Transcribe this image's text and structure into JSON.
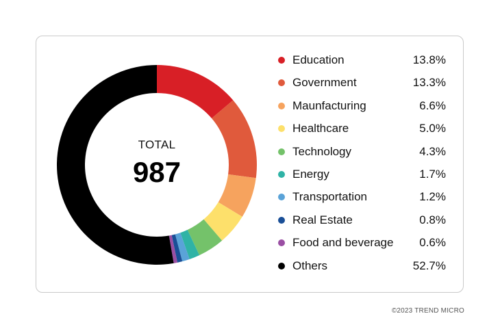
{
  "chart_data": {
    "type": "pie",
    "donut": true,
    "center": {
      "label": "TOTAL",
      "value": "987"
    },
    "legend_placement": "right",
    "slices": [
      {
        "name": "Education",
        "value": 13.8,
        "label": "13.8%",
        "color": "#d81f26"
      },
      {
        "name": "Government",
        "value": 13.3,
        "label": "13.3%",
        "color": "#e05a3c"
      },
      {
        "name": "Maunfacturing",
        "value": 6.6,
        "label": "6.6%",
        "color": "#f6a35e"
      },
      {
        "name": "Healthcare",
        "value": 5.0,
        "label": "5.0%",
        "color": "#fde06b"
      },
      {
        "name": "Technology",
        "value": 4.3,
        "label": "4.3%",
        "color": "#74c26a"
      },
      {
        "name": "Energy",
        "value": 1.7,
        "label": "1.7%",
        "color": "#2fb3a6"
      },
      {
        "name": "Transportation",
        "value": 1.2,
        "label": "1.2%",
        "color": "#5aa3d8"
      },
      {
        "name": "Real Estate",
        "value": 0.8,
        "label": "0.8%",
        "color": "#1a4f97"
      },
      {
        "name": "Food and beverage",
        "value": 0.6,
        "label": "0.6%",
        "color": "#9a4fa3"
      },
      {
        "name": "Others",
        "value": 52.7,
        "label": "52.7%",
        "color": "#000000"
      }
    ]
  },
  "footer": {
    "copyright": "©2023 TREND MICRO"
  }
}
